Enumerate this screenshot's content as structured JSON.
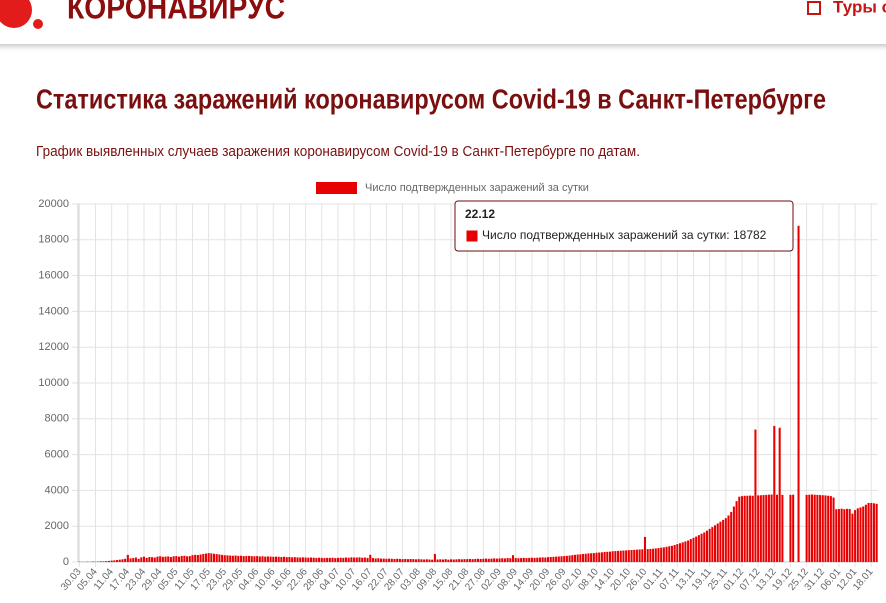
{
  "header": {
    "logo": "КОРОНАВИРУС",
    "link": "Туры с"
  },
  "heading": "Статистика заражений коронавирусом Covid-19 в Санкт-Петербурге",
  "description": "График выявленных случаев заражения коронавирусом Covid-19 в Санкт-Петербурге по датам.",
  "chart_data": {
    "type": "bar",
    "grid": true,
    "legend": "top",
    "categories": [
      "30.03",
      null,
      null,
      null,
      null,
      null,
      "05.04",
      null,
      null,
      null,
      null,
      null,
      "11.04",
      null,
      null,
      null,
      null,
      null,
      "17.04",
      null,
      null,
      null,
      null,
      null,
      "23.04",
      null,
      null,
      null,
      null,
      null,
      "29.04",
      null,
      null,
      null,
      null,
      null,
      "05.05",
      null,
      null,
      null,
      null,
      null,
      "11.05",
      null,
      null,
      null,
      null,
      null,
      "17.05",
      null,
      null,
      null,
      null,
      null,
      "23.05",
      null,
      null,
      null,
      null,
      null,
      "29.05",
      null,
      null,
      null,
      null,
      null,
      "04.06",
      null,
      null,
      null,
      null,
      null,
      "10.06",
      null,
      null,
      null,
      null,
      null,
      "16.06",
      null,
      null,
      null,
      null,
      null,
      "22.06",
      null,
      null,
      null,
      null,
      null,
      "28.06",
      null,
      null,
      null,
      null,
      null,
      "04.07",
      null,
      null,
      null,
      null,
      null,
      "10.07",
      null,
      null,
      null,
      null,
      null,
      "16.07",
      null,
      null,
      null,
      null,
      null,
      "22.07",
      null,
      null,
      null,
      null,
      null,
      "28.07",
      null,
      null,
      null,
      null,
      null,
      "03.08",
      null,
      null,
      null,
      null,
      null,
      "09.08",
      null,
      null,
      null,
      null,
      null,
      "15.08",
      null,
      null,
      null,
      null,
      null,
      "21.08",
      null,
      null,
      null,
      null,
      null,
      "27.08",
      null,
      null,
      null,
      null,
      null,
      "02.09",
      null,
      null,
      null,
      null,
      null,
      "08.09",
      null,
      null,
      null,
      null,
      null,
      "14.09",
      null,
      null,
      null,
      null,
      null,
      "20.09",
      null,
      null,
      null,
      null,
      null,
      "26.09",
      null,
      null,
      null,
      null,
      null,
      "02.10",
      null,
      null,
      null,
      null,
      null,
      "08.10",
      null,
      null,
      null,
      null,
      null,
      "14.10",
      null,
      null,
      null,
      null,
      null,
      "20.10",
      null,
      null,
      null,
      null,
      null,
      "26.10",
      null,
      null,
      null,
      null,
      null,
      "01.11",
      null,
      null,
      null,
      null,
      null,
      "07.11",
      null,
      null,
      null,
      null,
      null,
      "13.11",
      null,
      null,
      null,
      null,
      null,
      "19.11",
      null,
      null,
      null,
      null,
      null,
      "25.11",
      null,
      null,
      null,
      null,
      null,
      "01.12",
      null,
      null,
      null,
      null,
      null,
      "07.12",
      null,
      null,
      null,
      null,
      null,
      "13.12",
      null,
      null,
      null,
      null,
      null,
      "19.12",
      null,
      null,
      null,
      null,
      null,
      "25.12",
      null,
      null,
      null,
      null,
      null,
      "31.12",
      null,
      null,
      null,
      null,
      null,
      "06.01",
      null,
      null,
      null,
      null,
      null,
      "12.01",
      null,
      null,
      null,
      null,
      null,
      "18.01",
      null,
      null
    ],
    "series": [
      {
        "name": "Число подтвержденных заражений за сутки",
        "color": "#e80000",
        "values": [
          15,
          10,
          5,
          20,
          10,
          30,
          15,
          25,
          40,
          35,
          50,
          60,
          80,
          90,
          110,
          130,
          150,
          180,
          400,
          200,
          220,
          250,
          180,
          260,
          300,
          230,
          280,
          270,
          250,
          300,
          320,
          290,
          300,
          310,
          280,
          320,
          330,
          300,
          340,
          350,
          320,
          330,
          380,
          400,
          390,
          420,
          450,
          470,
          500,
          480,
          460,
          440,
          420,
          400,
          380,
          370,
          360,
          350,
          360,
          340,
          350,
          330,
          340,
          340,
          330,
          320,
          330,
          310,
          320,
          300,
          310,
          300,
          290,
          300,
          290,
          280,
          290,
          270,
          280,
          260,
          270,
          260,
          250,
          260,
          250,
          240,
          250,
          240,
          230,
          240,
          230,
          220,
          230,
          230,
          240,
          220,
          230,
          240,
          230,
          250,
          240,
          260,
          250,
          250,
          260,
          240,
          250,
          230,
          400,
          220,
          200,
          210,
          190,
          190,
          180,
          190,
          180,
          170,
          180,
          170,
          160,
          170,
          160,
          170,
          160,
          150,
          160,
          150,
          140,
          150,
          140,
          130,
          450,
          140,
          150,
          140,
          160,
          130,
          150,
          140,
          150,
          160,
          150,
          160,
          160,
          170,
          160,
          170,
          180,
          170,
          180,
          190,
          180,
          190,
          200,
          190,
          200,
          210,
          200,
          220,
          210,
          380,
          220,
          210,
          220,
          230,
          220,
          230,
          240,
          230,
          240,
          250,
          260,
          250,
          270,
          280,
          290,
          300,
          310,
          320,
          330,
          340,
          360,
          380,
          400,
          420,
          430,
          450,
          460,
          480,
          490,
          500,
          520,
          530,
          540,
          560,
          570,
          580,
          600,
          610,
          620,
          630,
          640,
          650,
          660,
          670,
          680,
          690,
          700,
          710,
          1400,
          720,
          730,
          740,
          760,
          780,
          800,
          820,
          850,
          880,
          900,
          950,
          1000,
          1050,
          1100,
          1150,
          1200,
          1280,
          1350,
          1420,
          1500,
          1580,
          1650,
          1750,
          1850,
          1950,
          2050,
          2150,
          2250,
          2350,
          2450,
          2600,
          2800,
          3100,
          3400,
          3650,
          3680,
          3700,
          3700,
          3710,
          3700,
          7400,
          3720,
          3730,
          3740,
          3750,
          3760,
          3770,
          7600,
          3760,
          7500,
          3750,
          0,
          0,
          3750,
          3760,
          0,
          18782,
          0,
          0,
          3750,
          3760,
          3770,
          3760,
          3750,
          3740,
          3730,
          3720,
          3700,
          3680,
          3600,
          2950,
          2960,
          2980,
          2950,
          2970,
          2960,
          2700,
          2900,
          3000,
          3050,
          3100,
          3200,
          3300,
          3300,
          3280,
          3250
        ]
      }
    ],
    "ylim": [
      0,
      20000
    ],
    "yticks": [
      0,
      2000,
      4000,
      6000,
      8000,
      10000,
      12000,
      14000,
      16000,
      18000,
      20000
    ],
    "tooltip": {
      "title": "22.12",
      "text": "Число подтвержденных заражений за сутки: 18782"
    }
  }
}
